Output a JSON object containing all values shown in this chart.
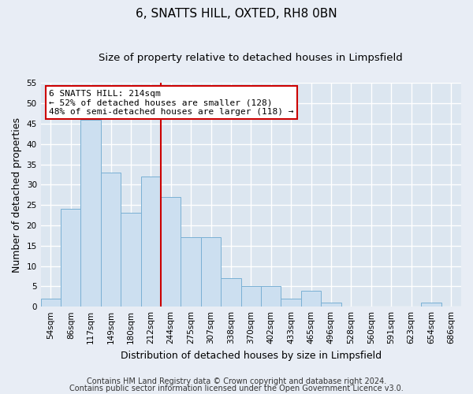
{
  "title": "6, SNATTS HILL, OXTED, RH8 0BN",
  "subtitle": "Size of property relative to detached houses in Limpsfield",
  "xlabel": "Distribution of detached houses by size in Limpsfield",
  "ylabel": "Number of detached properties",
  "bar_labels": [
    "54sqm",
    "86sqm",
    "117sqm",
    "149sqm",
    "180sqm",
    "212sqm",
    "244sqm",
    "275sqm",
    "307sqm",
    "338sqm",
    "370sqm",
    "402sqm",
    "433sqm",
    "465sqm",
    "496sqm",
    "528sqm",
    "560sqm",
    "591sqm",
    "623sqm",
    "654sqm",
    "686sqm"
  ],
  "bar_values": [
    2,
    24,
    46,
    33,
    23,
    32,
    27,
    17,
    17,
    7,
    5,
    5,
    2,
    4,
    1,
    0,
    0,
    0,
    0,
    1,
    0
  ],
  "bar_color": "#ccdff0",
  "bar_edge_color": "#7ab0d4",
  "vline_x_index": 5.5,
  "vline_color": "#cc0000",
  "annotation_title": "6 SNATTS HILL: 214sqm",
  "annotation_line1": "← 52% of detached houses are smaller (128)",
  "annotation_line2": "48% of semi-detached houses are larger (118) →",
  "annotation_box_facecolor": "#ffffff",
  "annotation_box_edgecolor": "#cc0000",
  "ylim": [
    0,
    55
  ],
  "yticks": [
    0,
    5,
    10,
    15,
    20,
    25,
    30,
    35,
    40,
    45,
    50,
    55
  ],
  "footnote1": "Contains HM Land Registry data © Crown copyright and database right 2024.",
  "footnote2": "Contains public sector information licensed under the Open Government Licence v3.0.",
  "fig_facecolor": "#e8edf5",
  "plot_facecolor": "#dce6f0",
  "grid_color": "#ffffff",
  "grid_linewidth": 1.0,
  "title_fontsize": 11,
  "subtitle_fontsize": 9.5,
  "ylabel_fontsize": 9,
  "xlabel_fontsize": 9,
  "tick_fontsize": 7.5,
  "annotation_fontsize": 8,
  "footnote_fontsize": 7
}
